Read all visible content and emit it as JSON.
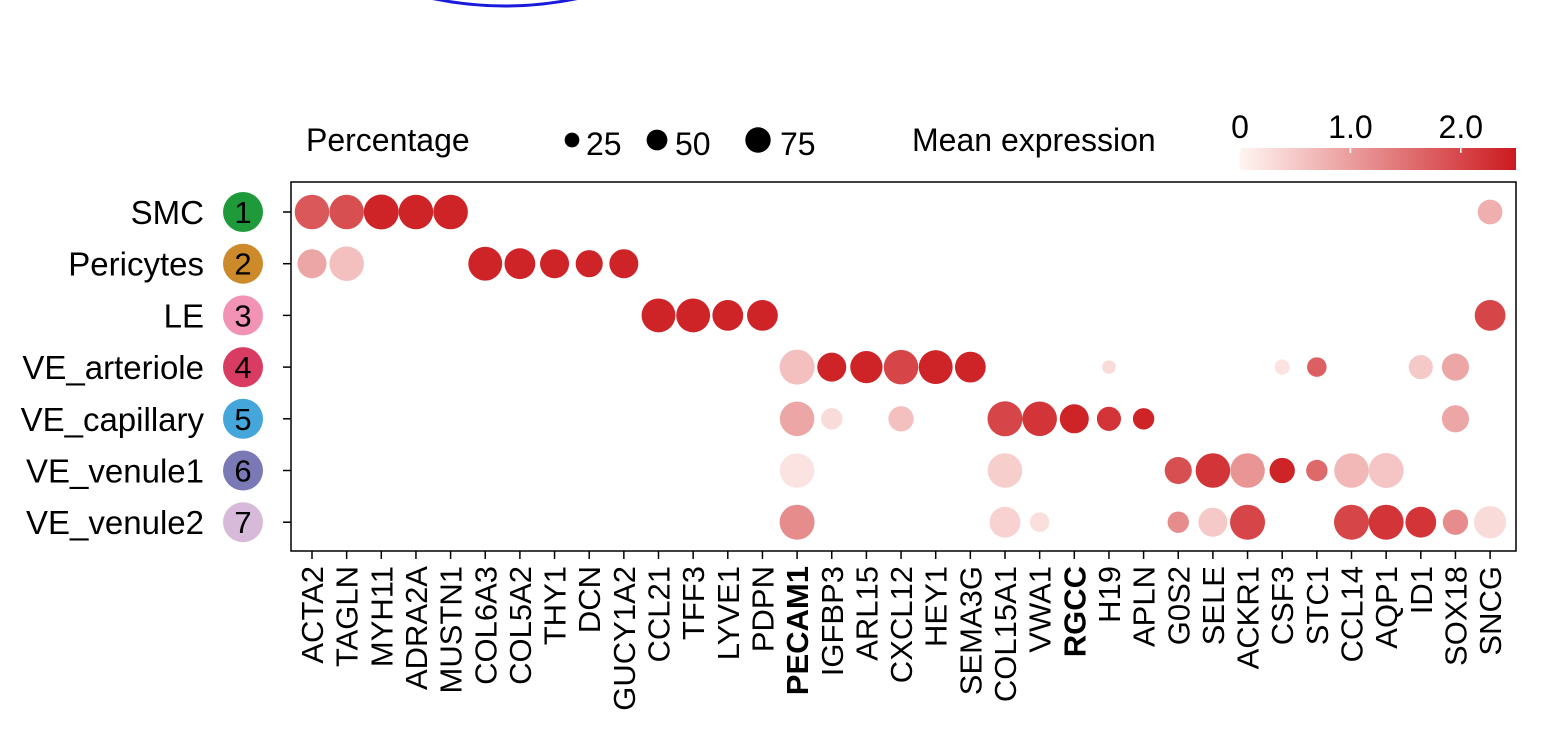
{
  "chart_data": {
    "type": "scatter",
    "legend": {
      "size_title": "Percentage",
      "size_values": [
        25,
        50,
        75
      ],
      "size_labels": [
        "25",
        "50",
        "75"
      ],
      "color_title": "Mean expression",
      "color_ticks": [
        "0",
        "1.0",
        "2.0"
      ],
      "color_tick_values": [
        0,
        1.0,
        2.0
      ],
      "color_range": [
        0,
        2.5
      ],
      "color_low": "#fff5f2",
      "color_high": "#cc1a1f"
    },
    "clusters": [
      {
        "label": "SMC",
        "number": "1",
        "color": "#1f9a3a"
      },
      {
        "label": "Pericytes",
        "number": "2",
        "color": "#cc8a2a"
      },
      {
        "label": "LE",
        "number": "3",
        "color": "#f292b4"
      },
      {
        "label": "VE_arteriole",
        "number": "4",
        "color": "#d93c62"
      },
      {
        "label": "VE_capillary",
        "number": "5",
        "color": "#45a6dc"
      },
      {
        "label": "VE_venule1",
        "number": "6",
        "color": "#7b78b6"
      },
      {
        "label": "VE_venule2",
        "number": "7",
        "color": "#d7bad9"
      }
    ],
    "genes": [
      "ACTA2",
      "TAGLN",
      "MYH11",
      "ADRA2A",
      "MUSTN1",
      "COL6A3",
      "COL5A2",
      "THY1",
      "DCN",
      "GUCY1A2",
      "CCL21",
      "TFF3",
      "LYVE1",
      "PDPN",
      "PECAM1",
      "IGFBP3",
      "ARL15",
      "CXCL12",
      "HEY1",
      "SEMA3G",
      "COL15A1",
      "VWA1",
      "RGCC",
      "H19",
      "APLN",
      "G0S2",
      "SELE",
      "ACKR1",
      "CSF3",
      "STC1",
      "CCL14",
      "AQP1",
      "ID1",
      "SOX18",
      "SNCG"
    ],
    "highlighted_genes": [
      "PECAM1",
      "RGCC"
    ],
    "highlight_color": "#e8202a",
    "points": [
      {
        "cluster": 0,
        "gene": 0,
        "pct": 78,
        "expr": 1.8
      },
      {
        "cluster": 0,
        "gene": 1,
        "pct": 78,
        "expr": 1.9
      },
      {
        "cluster": 0,
        "gene": 2,
        "pct": 80,
        "expr": 2.4
      },
      {
        "cluster": 0,
        "gene": 3,
        "pct": 78,
        "expr": 2.4
      },
      {
        "cluster": 0,
        "gene": 4,
        "pct": 78,
        "expr": 2.4
      },
      {
        "cluster": 0,
        "gene": 34,
        "pct": 40,
        "expr": 0.8
      },
      {
        "cluster": 1,
        "gene": 0,
        "pct": 55,
        "expr": 0.9
      },
      {
        "cluster": 1,
        "gene": 1,
        "pct": 78,
        "expr": 0.6
      },
      {
        "cluster": 1,
        "gene": 5,
        "pct": 75,
        "expr": 2.4
      },
      {
        "cluster": 1,
        "gene": 6,
        "pct": 62,
        "expr": 2.4
      },
      {
        "cluster": 1,
        "gene": 7,
        "pct": 55,
        "expr": 2.4
      },
      {
        "cluster": 1,
        "gene": 8,
        "pct": 48,
        "expr": 2.4
      },
      {
        "cluster": 1,
        "gene": 9,
        "pct": 55,
        "expr": 2.4
      },
      {
        "cluster": 2,
        "gene": 10,
        "pct": 75,
        "expr": 2.4
      },
      {
        "cluster": 2,
        "gene": 11,
        "pct": 75,
        "expr": 2.4
      },
      {
        "cluster": 2,
        "gene": 12,
        "pct": 62,
        "expr": 2.4
      },
      {
        "cluster": 2,
        "gene": 13,
        "pct": 62,
        "expr": 2.4
      },
      {
        "cluster": 2,
        "gene": 34,
        "pct": 62,
        "expr": 2.0
      },
      {
        "cluster": 3,
        "gene": 14,
        "pct": 80,
        "expr": 0.6
      },
      {
        "cluster": 3,
        "gene": 15,
        "pct": 55,
        "expr": 2.4
      },
      {
        "cluster": 3,
        "gene": 16,
        "pct": 68,
        "expr": 2.4
      },
      {
        "cluster": 3,
        "gene": 17,
        "pct": 78,
        "expr": 2.0
      },
      {
        "cluster": 3,
        "gene": 18,
        "pct": 75,
        "expr": 2.4
      },
      {
        "cluster": 3,
        "gene": 19,
        "pct": 62,
        "expr": 2.4
      },
      {
        "cluster": 3,
        "gene": 23,
        "pct": 12,
        "expr": 0.3
      },
      {
        "cluster": 3,
        "gene": 28,
        "pct": 15,
        "expr": 0.2
      },
      {
        "cluster": 3,
        "gene": 29,
        "pct": 25,
        "expr": 1.7
      },
      {
        "cluster": 3,
        "gene": 32,
        "pct": 38,
        "expr": 0.5
      },
      {
        "cluster": 3,
        "gene": 33,
        "pct": 48,
        "expr": 0.9
      },
      {
        "cluster": 4,
        "gene": 14,
        "pct": 78,
        "expr": 0.9
      },
      {
        "cluster": 4,
        "gene": 15,
        "pct": 30,
        "expr": 0.3
      },
      {
        "cluster": 4,
        "gene": 17,
        "pct": 42,
        "expr": 0.6
      },
      {
        "cluster": 4,
        "gene": 20,
        "pct": 80,
        "expr": 2.0
      },
      {
        "cluster": 4,
        "gene": 21,
        "pct": 78,
        "expr": 2.2
      },
      {
        "cluster": 4,
        "gene": 22,
        "pct": 55,
        "expr": 2.4
      },
      {
        "cluster": 4,
        "gene": 23,
        "pct": 38,
        "expr": 2.2
      },
      {
        "cluster": 4,
        "gene": 24,
        "pct": 30,
        "expr": 2.4
      },
      {
        "cluster": 4,
        "gene": 33,
        "pct": 48,
        "expr": 0.9
      },
      {
        "cluster": 5,
        "gene": 14,
        "pct": 78,
        "expr": 0.2
      },
      {
        "cluster": 5,
        "gene": 20,
        "pct": 78,
        "expr": 0.45
      },
      {
        "cluster": 5,
        "gene": 25,
        "pct": 48,
        "expr": 1.9
      },
      {
        "cluster": 5,
        "gene": 26,
        "pct": 78,
        "expr": 2.2
      },
      {
        "cluster": 5,
        "gene": 27,
        "pct": 78,
        "expr": 1.1
      },
      {
        "cluster": 5,
        "gene": 28,
        "pct": 42,
        "expr": 2.4
      },
      {
        "cluster": 5,
        "gene": 29,
        "pct": 30,
        "expr": 1.6
      },
      {
        "cluster": 5,
        "gene": 30,
        "pct": 78,
        "expr": 0.7
      },
      {
        "cluster": 5,
        "gene": 31,
        "pct": 80,
        "expr": 0.55
      },
      {
        "cluster": 6,
        "gene": 14,
        "pct": 80,
        "expr": 1.2
      },
      {
        "cluster": 6,
        "gene": 20,
        "pct": 62,
        "expr": 0.4
      },
      {
        "cluster": 6,
        "gene": 21,
        "pct": 25,
        "expr": 0.25
      },
      {
        "cluster": 6,
        "gene": 25,
        "pct": 30,
        "expr": 1.2
      },
      {
        "cluster": 6,
        "gene": 26,
        "pct": 55,
        "expr": 0.5
      },
      {
        "cluster": 6,
        "gene": 27,
        "pct": 80,
        "expr": 2.0
      },
      {
        "cluster": 6,
        "gene": 30,
        "pct": 80,
        "expr": 2.0
      },
      {
        "cluster": 6,
        "gene": 31,
        "pct": 80,
        "expr": 2.2
      },
      {
        "cluster": 6,
        "gene": 32,
        "pct": 62,
        "expr": 2.2
      },
      {
        "cluster": 6,
        "gene": 33,
        "pct": 42,
        "expr": 1.2
      },
      {
        "cluster": 6,
        "gene": 34,
        "pct": 68,
        "expr": 0.3
      }
    ]
  }
}
